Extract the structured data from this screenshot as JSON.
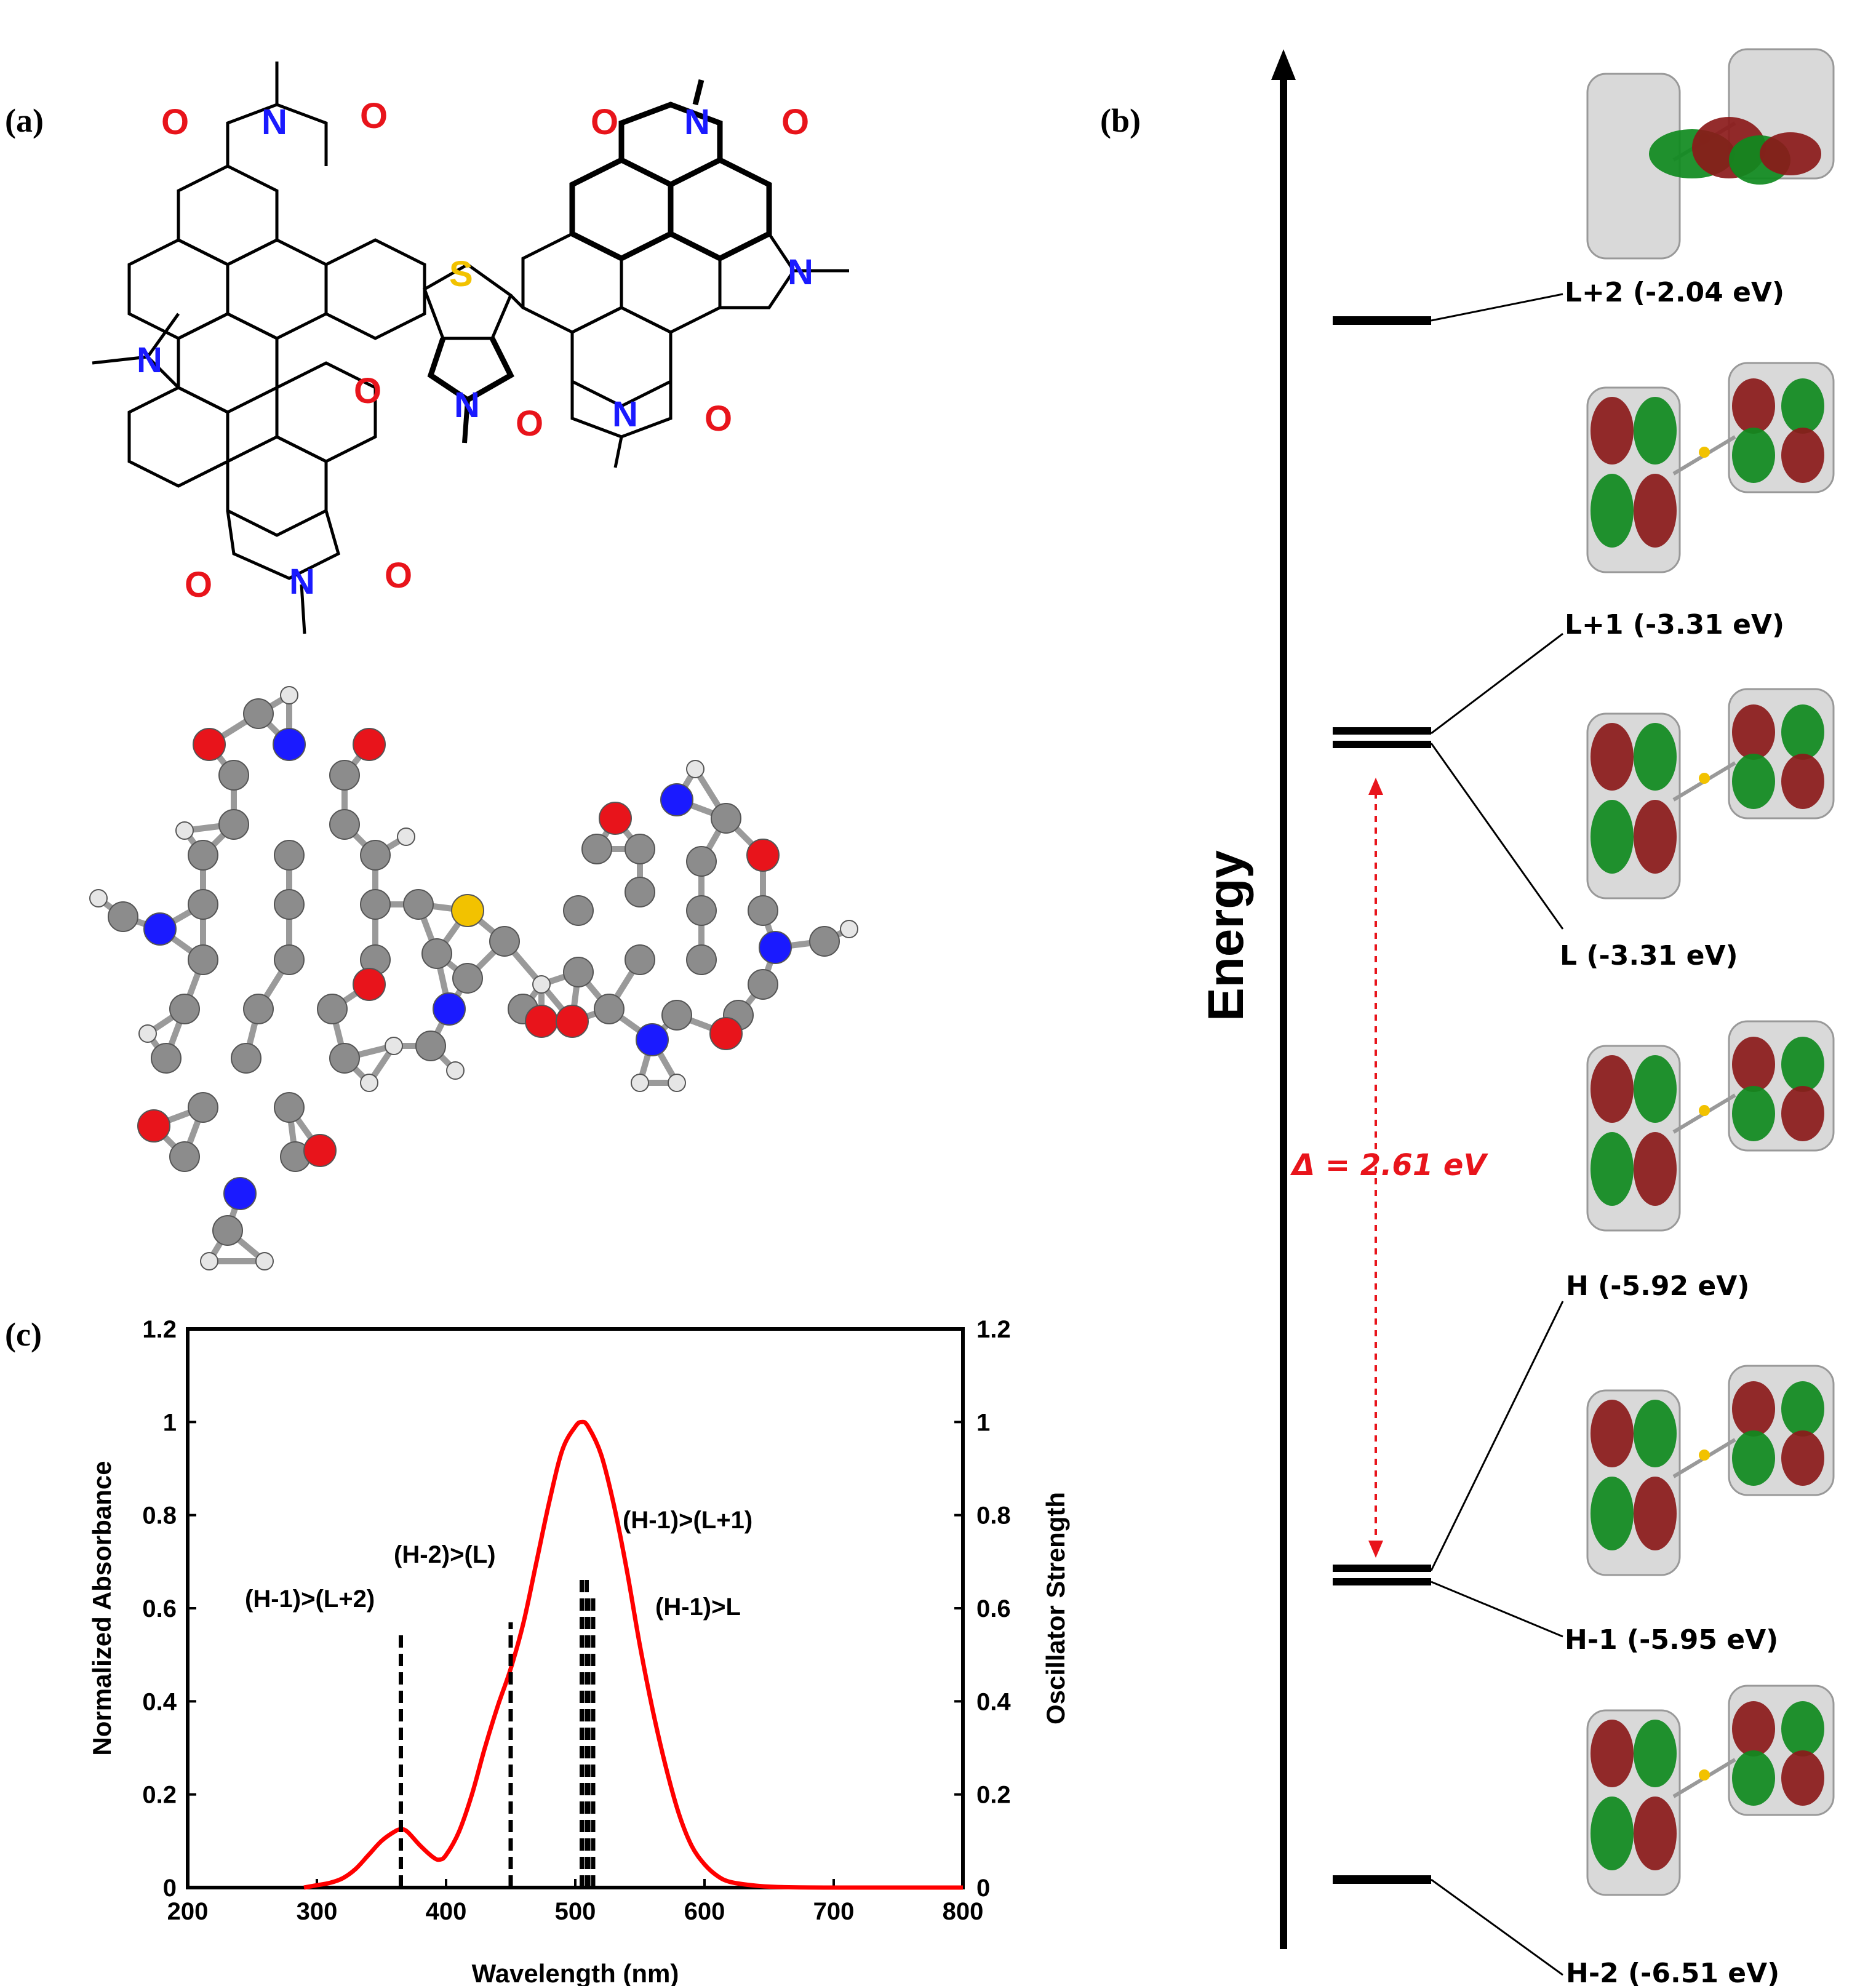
{
  "panel_labels": {
    "a": "(a)",
    "b": "(b)",
    "c": "(c)"
  },
  "structure": {
    "atoms": {
      "oxygen": "O",
      "nitrogen": "N",
      "sulfur": "S"
    },
    "colors": {
      "oxygen": "#e8141b",
      "nitrogen": "#1a1aff",
      "sulfur": "#f2c200",
      "carbon": "#8c8c8c",
      "hydrogen": "#e6e6e6"
    }
  },
  "energy_diagram": {
    "axis_title": "Energy",
    "gap_label": "Δ = 2.61 eV",
    "gap_color": "#e8141b",
    "levels": [
      {
        "label": "L+2 (-2.04 eV)"
      },
      {
        "label": "L+1 (-3.31 eV)"
      },
      {
        "label": "L (-3.31 eV)"
      },
      {
        "label": "H (-5.92 eV)"
      },
      {
        "label": "H-1 (-5.95 eV)"
      },
      {
        "label": "H-2 (-6.51 eV)"
      }
    ],
    "orbital_colors": {
      "positive": "#0f8a1e",
      "negative": "#8b1a1a"
    }
  },
  "chart_data": {
    "type": "line",
    "title": "",
    "xlabel": "Wavelength (nm)",
    "ylabel": "Normalized Absorbance",
    "y2label": "Oscillator Strength",
    "xlim": [
      200,
      800
    ],
    "ylim": [
      0,
      1.2
    ],
    "y2lim": [
      0,
      1.2
    ],
    "xticks": [
      "200",
      "300",
      "400",
      "500",
      "600",
      "700",
      "800"
    ],
    "yticks": [
      "0",
      "0.2",
      "0.4",
      "0.6",
      "0.8",
      "1",
      "1.2"
    ],
    "y2ticks": [
      "0",
      "0.2",
      "0.4",
      "0.6",
      "0.8",
      "1",
      "1.2"
    ],
    "series": [
      {
        "name": "Normalized Absorbance",
        "color": "#ff0000",
        "x": [
          290,
          300,
          310,
          320,
          330,
          340,
          350,
          360,
          365,
          370,
          380,
          390,
          395,
          400,
          410,
          420,
          430,
          440,
          450,
          460,
          470,
          480,
          490,
          500,
          505,
          510,
          520,
          530,
          540,
          550,
          560,
          570,
          580,
          590,
          600,
          610,
          620,
          640,
          660,
          700,
          800
        ],
        "y": [
          0.0,
          0.005,
          0.01,
          0.02,
          0.04,
          0.07,
          0.1,
          0.12,
          0.125,
          0.12,
          0.09,
          0.065,
          0.06,
          0.07,
          0.12,
          0.2,
          0.3,
          0.39,
          0.47,
          0.57,
          0.7,
          0.83,
          0.94,
          0.99,
          1.0,
          0.99,
          0.93,
          0.82,
          0.68,
          0.52,
          0.38,
          0.26,
          0.16,
          0.09,
          0.05,
          0.025,
          0.012,
          0.004,
          0.001,
          0.0,
          0.0
        ]
      }
    ],
    "transitions": [
      {
        "label": "(H-1)>(L+2)",
        "x": 365,
        "f": 0.55
      },
      {
        "label": "(H-2)>(L)",
        "x": 450,
        "f": 0.57
      },
      {
        "label": "(H-1)>(L+1)",
        "x": 505,
        "f": 0.67
      },
      {
        "label": "(H-1)>L",
        "x": 510,
        "f": 0.63
      }
    ]
  }
}
